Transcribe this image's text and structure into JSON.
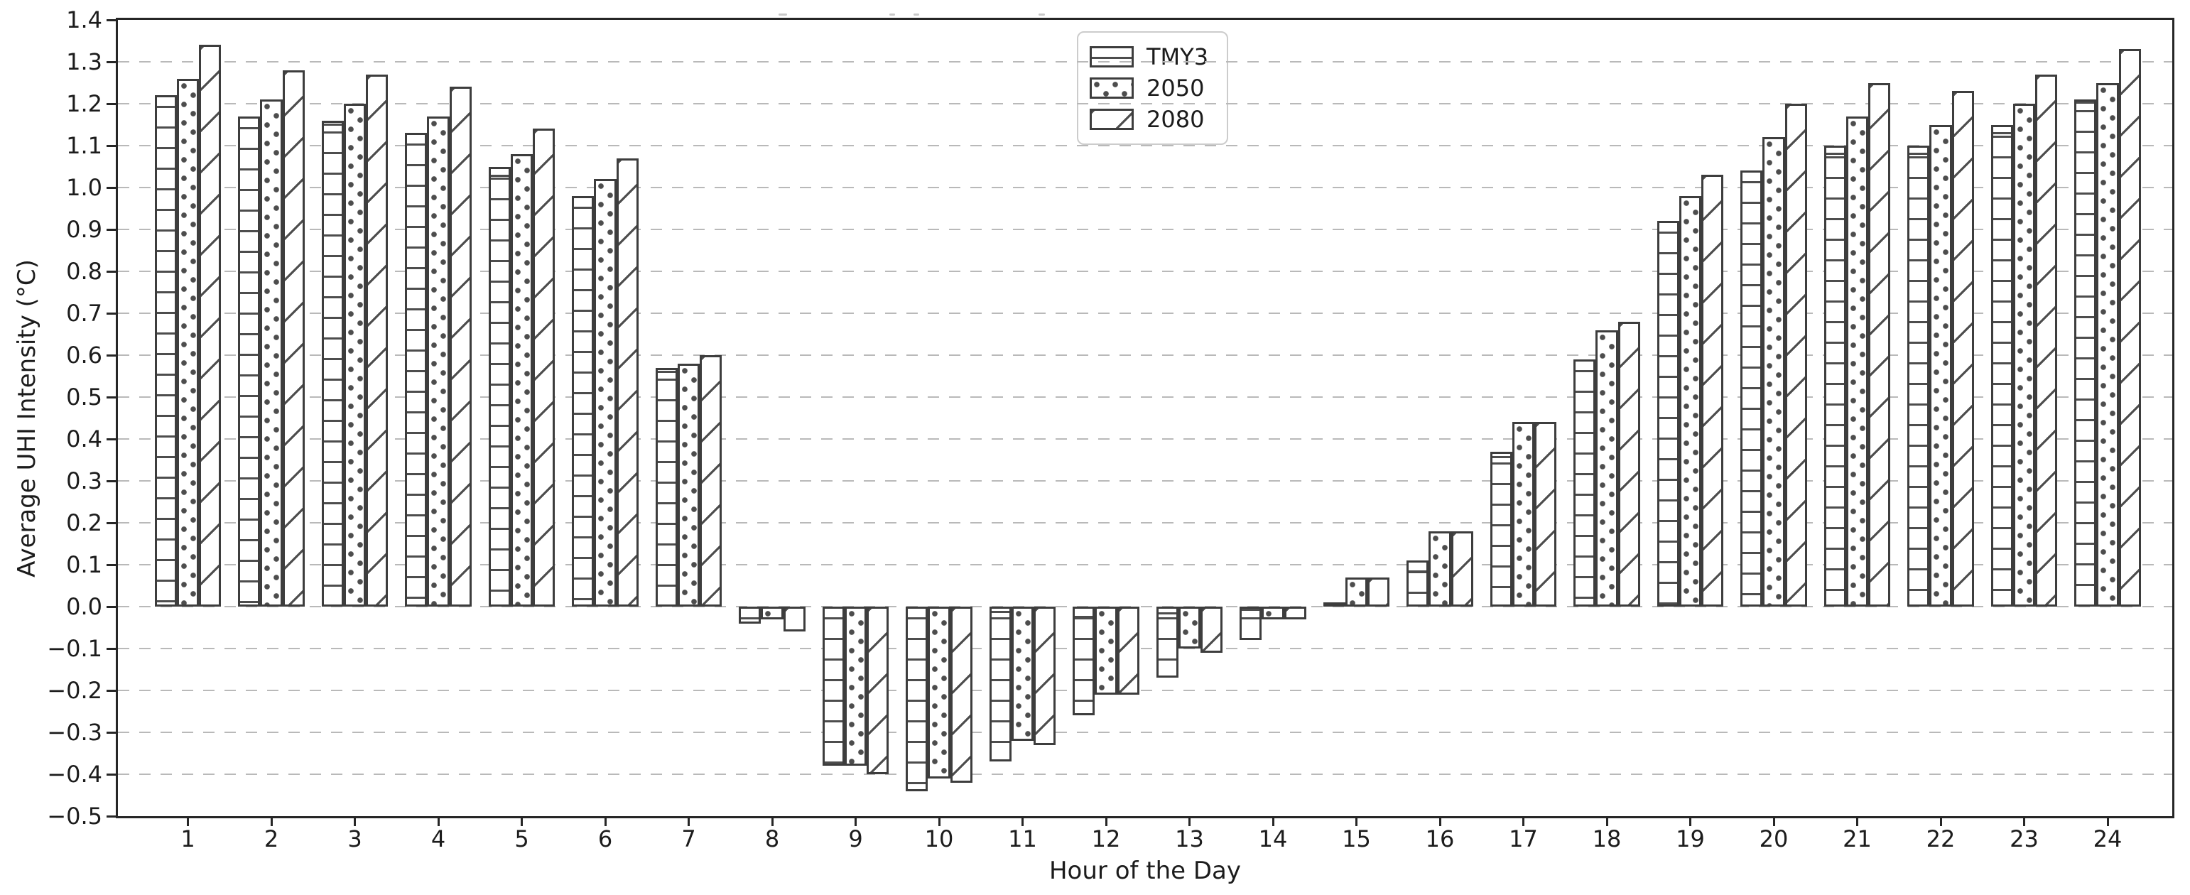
{
  "chart_data": {
    "type": "bar",
    "title": "",
    "xlabel": "Hour of the Day",
    "ylabel": "Average UHI Intensity (°C)",
    "categories": [
      "1",
      "2",
      "3",
      "4",
      "5",
      "6",
      "7",
      "8",
      "9",
      "10",
      "11",
      "12",
      "13",
      "14",
      "15",
      "16",
      "17",
      "18",
      "19",
      "20",
      "21",
      "22",
      "23",
      "24"
    ],
    "series": [
      {
        "name": "TMY3",
        "hatch": "horizontal-lines",
        "values": [
          1.22,
          1.17,
          1.16,
          1.13,
          1.05,
          0.98,
          0.57,
          -0.04,
          -0.38,
          -0.44,
          -0.37,
          -0.26,
          -0.17,
          -0.08,
          0.01,
          0.11,
          0.37,
          0.59,
          0.92,
          1.04,
          1.1,
          1.1,
          1.15,
          1.21
        ]
      },
      {
        "name": "2050",
        "hatch": "dots",
        "values": [
          1.26,
          1.21,
          1.2,
          1.17,
          1.08,
          1.02,
          0.58,
          -0.03,
          -0.38,
          -0.41,
          -0.32,
          -0.21,
          -0.1,
          -0.03,
          0.07,
          0.18,
          0.44,
          0.66,
          0.98,
          1.12,
          1.17,
          1.15,
          1.2,
          1.25
        ]
      },
      {
        "name": "2080",
        "hatch": "diagonal-lines",
        "values": [
          1.34,
          1.28,
          1.27,
          1.24,
          1.14,
          1.07,
          0.6,
          -0.06,
          -0.4,
          -0.42,
          -0.33,
          -0.21,
          -0.11,
          -0.03,
          0.07,
          0.18,
          0.44,
          0.68,
          1.03,
          1.2,
          1.25,
          1.23,
          1.27,
          1.33
        ]
      }
    ],
    "ylim": [
      -0.5,
      1.4
    ],
    "ytick_step": 0.1,
    "ytick_labels": [
      "1.4",
      "1.3",
      "1.2",
      "1.1",
      "1.0",
      "0.9",
      "0.8",
      "0.7",
      "0.6",
      "0.5",
      "0.4",
      "0.3",
      "0.2",
      "0.1",
      "0.0",
      "−0.1",
      "−0.2",
      "−0.3",
      "−0.4",
      "−0.5"
    ],
    "legend": {
      "position": "upper-center",
      "entries": [
        "TMY3",
        "2050",
        "2080"
      ]
    },
    "grid": "horizontal-dashed",
    "bar_fill": "#ffffff",
    "bar_edge_color": "#3d3d3d",
    "hatch_color": "#4d4d4d",
    "grid_color": "#b9b9b9",
    "spine_color": "#262626",
    "text_color": "#1c1c1c"
  }
}
